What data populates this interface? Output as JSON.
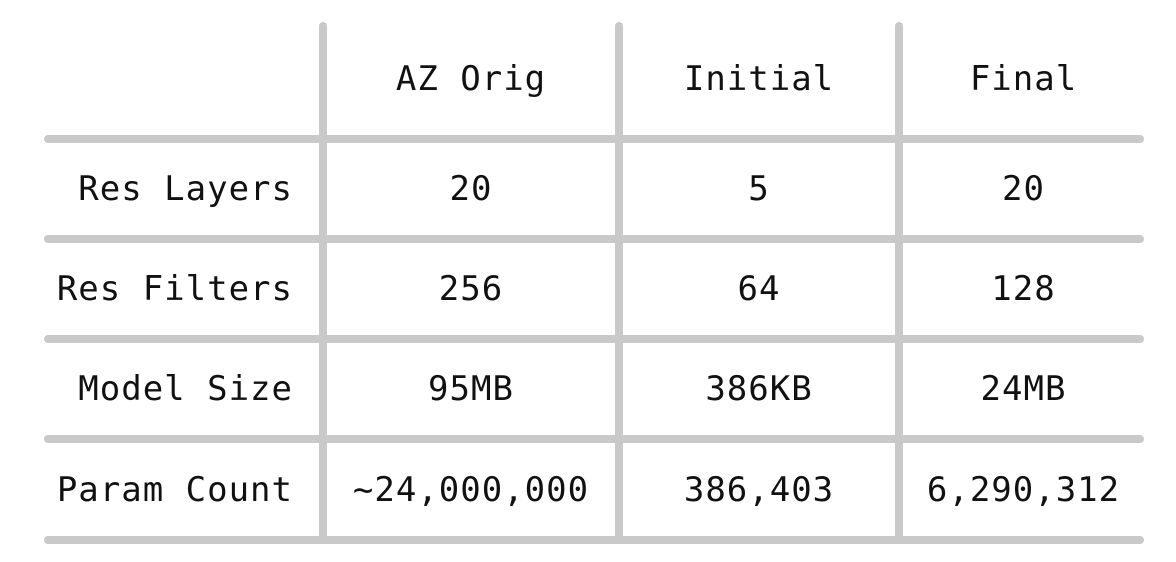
{
  "table": {
    "columns": [
      "",
      "AZ Orig",
      "Initial",
      "Final"
    ],
    "rows": [
      {
        "label": "Res Layers",
        "values": [
          "20",
          "5",
          "20"
        ]
      },
      {
        "label": "Res Filters",
        "values": [
          "256",
          "64",
          "128"
        ]
      },
      {
        "label": "Model Size",
        "values": [
          "95MB",
          "386KB",
          "24MB"
        ]
      },
      {
        "label": "Param Count",
        "values": [
          "~24,000,000",
          "386,403",
          "6,290,312"
        ]
      }
    ]
  },
  "colors": {
    "grid": "#c9c9c9",
    "text": "#111111",
    "background": "#ffffff"
  }
}
